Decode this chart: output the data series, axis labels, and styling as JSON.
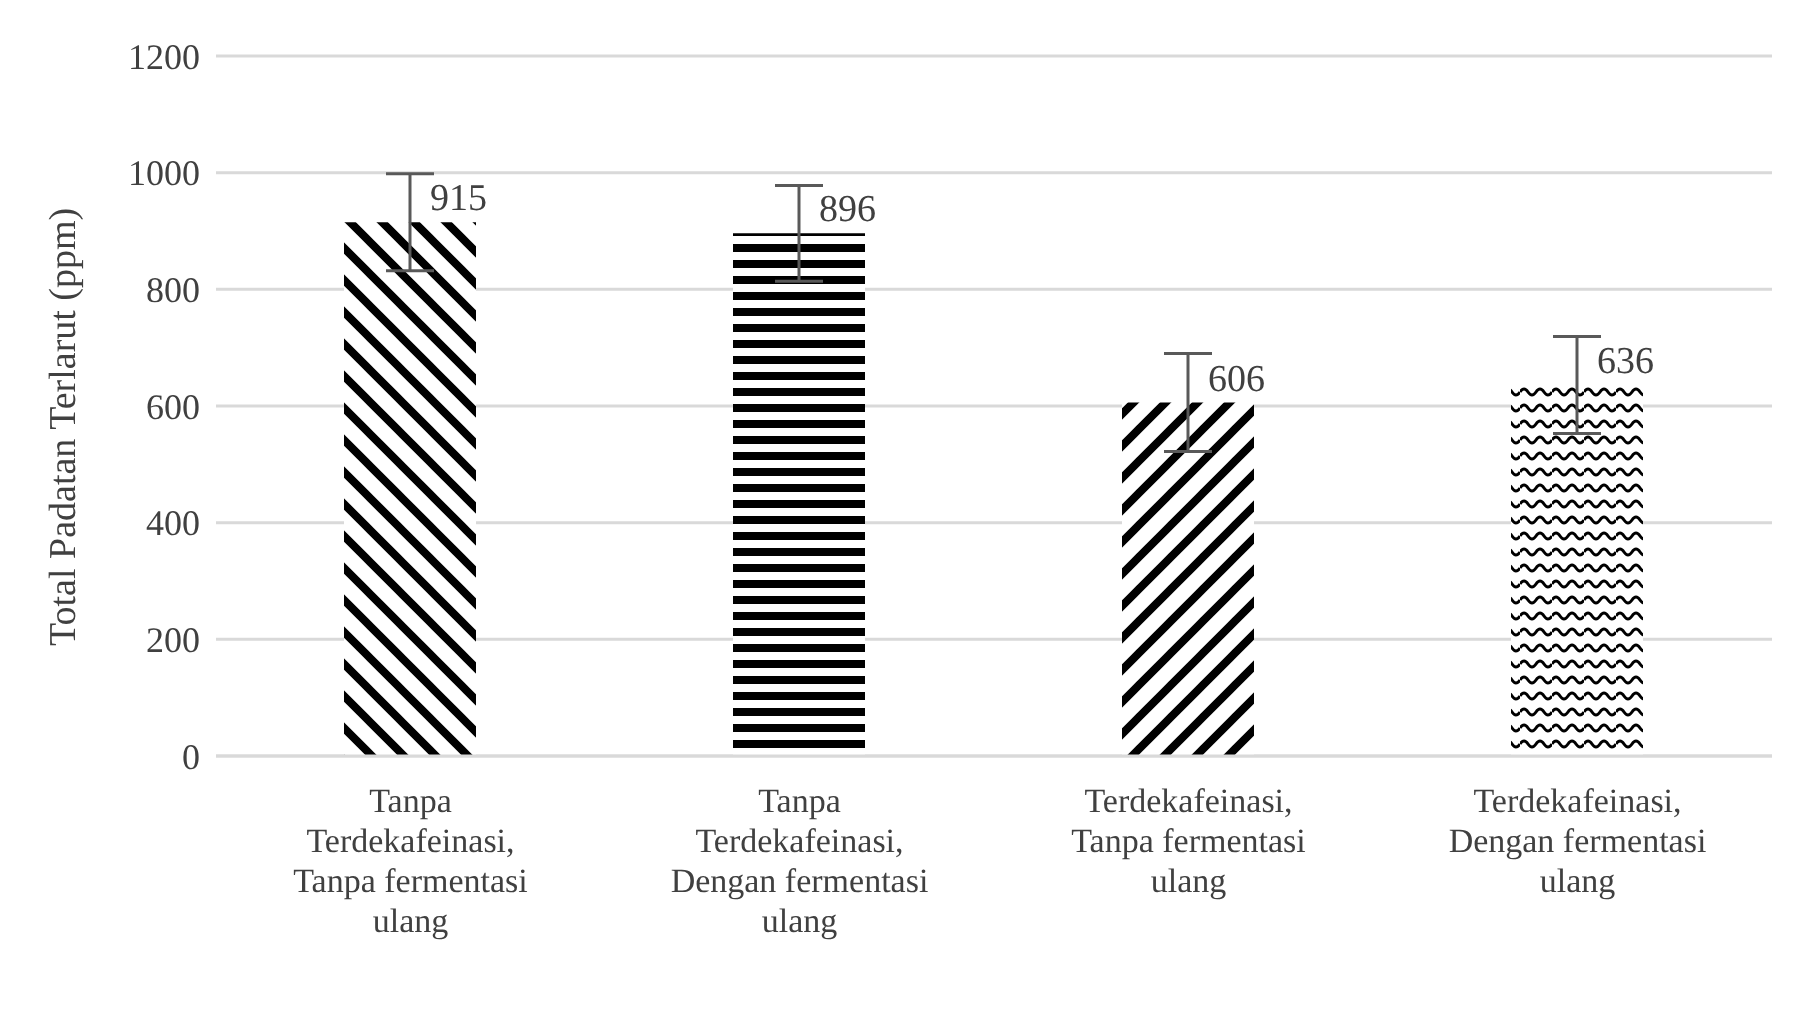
{
  "chart_data": {
    "type": "bar",
    "ylabel": "Total Padatan Terlarut (ppm)",
    "categories": [
      "Tanpa Terdekafeinasi, Tanpa fermentasi ulang",
      "Tanpa Terdekafeinasi, Dengan fermentasi ulang",
      "Terdekafeinasi, Tanpa fermentasi ulang",
      "Terdekafeinasi, Dengan fermentasi ulang"
    ],
    "values": [
      915,
      896,
      606,
      636
    ],
    "errors": [
      83,
      82,
      84,
      83
    ],
    "colors": [
      "#000000",
      "#000000",
      "#000000",
      "#000000"
    ],
    "data_labels": true,
    "ylim": [
      0,
      1200
    ],
    "yticks": [
      0,
      200,
      400,
      600,
      800,
      1000,
      1200
    ],
    "grid": "y",
    "legend": false
  }
}
